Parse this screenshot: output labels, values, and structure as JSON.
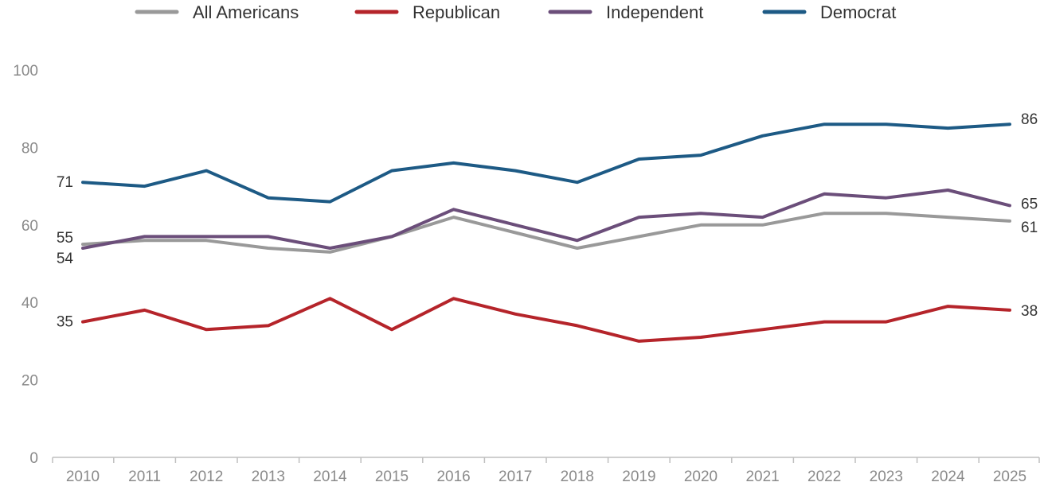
{
  "chart_data": {
    "type": "line",
    "title": "",
    "xlabel": "",
    "ylabel": "",
    "x": [
      "2010",
      "2011",
      "2012",
      "2013",
      "2014",
      "2015",
      "2016",
      "2017",
      "2018",
      "2019",
      "2020",
      "2021",
      "2022",
      "2023",
      "2024",
      "2025"
    ],
    "ylim": [
      0,
      100
    ],
    "yticks": [
      "0",
      "20",
      "40",
      "60",
      "80",
      "100"
    ],
    "grid": false,
    "legend_position": "top",
    "series": [
      {
        "name": "All Americans",
        "color": "#999999",
        "values": [
          55,
          56,
          56,
          54,
          53,
          57,
          62,
          58,
          54,
          57,
          60,
          60,
          63,
          63,
          62,
          61
        ]
      },
      {
        "name": "Republican",
        "color": "#b5242a",
        "values": [
          35,
          38,
          33,
          34,
          41,
          33,
          41,
          37,
          34,
          30,
          31,
          33,
          35,
          35,
          39,
          38
        ]
      },
      {
        "name": "Independent",
        "color": "#6b4e7a",
        "values": [
          54,
          57,
          57,
          57,
          54,
          57,
          64,
          60,
          56,
          62,
          63,
          62,
          68,
          67,
          69,
          65
        ]
      },
      {
        "name": "Democrat",
        "color": "#1d5a85",
        "values": [
          71,
          70,
          74,
          67,
          66,
          74,
          76,
          74,
          71,
          77,
          78,
          83,
          86,
          86,
          85,
          86
        ]
      }
    ],
    "start_labels": [
      {
        "series": "Democrat",
        "text": "71"
      },
      {
        "series": "All Americans",
        "text": "55"
      },
      {
        "series": "Independent",
        "text": "54"
      },
      {
        "series": "Republican",
        "text": "35"
      }
    ],
    "end_labels": [
      {
        "series": "Democrat",
        "text": "86"
      },
      {
        "series": "Independent",
        "text": "65"
      },
      {
        "series": "All Americans",
        "text": "61"
      },
      {
        "series": "Republican",
        "text": "38"
      }
    ]
  }
}
